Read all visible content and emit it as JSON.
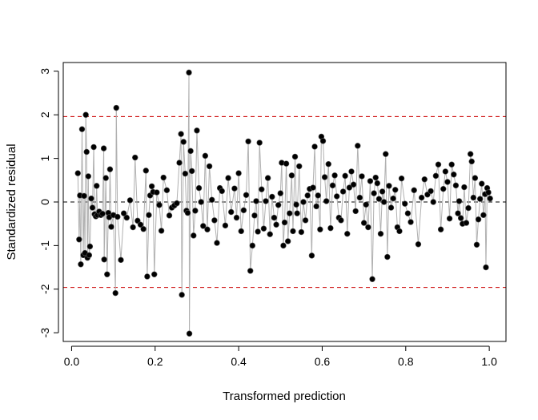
{
  "chart_data": {
    "type": "scatter",
    "title": "",
    "xlabel": "Transformed prediction",
    "ylabel": "Standardized residual",
    "xlim": [
      -0.02,
      1.04
    ],
    "ylim": [
      -3.2,
      3.2
    ],
    "xticks": [
      0.0,
      0.2,
      0.4,
      0.6,
      0.8,
      1.0
    ],
    "xtick_labels": [
      "0.0",
      "0.2",
      "0.4",
      "0.6",
      "0.8",
      "1.0"
    ],
    "yticks": [
      -3,
      -2,
      -1,
      0,
      1,
      2,
      3
    ],
    "ytick_labels": [
      "-3",
      "-2",
      "-1",
      "0",
      "1",
      "2",
      "3"
    ],
    "reference_lines": [
      {
        "y": 1.96,
        "style": "dashed",
        "color": "#cc0000"
      },
      {
        "y": 0,
        "style": "dashed",
        "color": "#000000"
      },
      {
        "y": -1.96,
        "style": "dashed",
        "color": "#cc0000"
      }
    ],
    "connecting_line_color": "#b0b0b0",
    "point_color": "#000000",
    "grid": false,
    "legend": "none",
    "points": [
      [
        0.015,
        0.66
      ],
      [
        0.018,
        -0.86
      ],
      [
        0.02,
        0.15
      ],
      [
        0.022,
        -1.43
      ],
      [
        0.025,
        1.67
      ],
      [
        0.028,
        -1.22
      ],
      [
        0.03,
        0.14
      ],
      [
        0.032,
        -1.17
      ],
      [
        0.034,
        2.0
      ],
      [
        0.036,
        1.15
      ],
      [
        0.038,
        -1.28
      ],
      [
        0.04,
        0.59
      ],
      [
        0.042,
        -1.22
      ],
      [
        0.044,
        -1.02
      ],
      [
        0.047,
        0.08
      ],
      [
        0.05,
        -0.13
      ],
      [
        0.053,
        1.26
      ],
      [
        0.055,
        -0.28
      ],
      [
        0.058,
        -0.33
      ],
      [
        0.06,
        0.37
      ],
      [
        0.062,
        -0.3
      ],
      [
        0.066,
        -0.22
      ],
      [
        0.07,
        -0.3
      ],
      [
        0.074,
        -0.27
      ],
      [
        0.077,
        1.23
      ],
      [
        0.078,
        -1.32
      ],
      [
        0.082,
        0.55
      ],
      [
        0.085,
        -1.66
      ],
      [
        0.088,
        -0.25
      ],
      [
        0.09,
        -0.35
      ],
      [
        0.092,
        0.75
      ],
      [
        0.095,
        -0.57
      ],
      [
        0.1,
        -0.3
      ],
      [
        0.105,
        -2.09
      ],
      [
        0.107,
        2.16
      ],
      [
        0.11,
        -0.34
      ],
      [
        0.118,
        -1.33
      ],
      [
        0.125,
        -0.26
      ],
      [
        0.132,
        -0.36
      ],
      [
        0.14,
        0.04
      ],
      [
        0.147,
        -0.58
      ],
      [
        0.152,
        1.02
      ],
      [
        0.158,
        -0.43
      ],
      [
        0.165,
        -0.52
      ],
      [
        0.172,
        -0.62
      ],
      [
        0.178,
        0.72
      ],
      [
        0.181,
        -1.71
      ],
      [
        0.185,
        -0.3
      ],
      [
        0.188,
        0.15
      ],
      [
        0.192,
        0.36
      ],
      [
        0.195,
        0.23
      ],
      [
        0.198,
        -1.66
      ],
      [
        0.204,
        0.22
      ],
      [
        0.21,
        -0.07
      ],
      [
        0.215,
        -0.66
      ],
      [
        0.22,
        0.56
      ],
      [
        0.228,
        0.27
      ],
      [
        0.234,
        -0.31
      ],
      [
        0.24,
        -0.13
      ],
      [
        0.246,
        -0.08
      ],
      [
        0.252,
        -0.03
      ],
      [
        0.258,
        0.9
      ],
      [
        0.262,
        1.56
      ],
      [
        0.264,
        -2.13
      ],
      [
        0.268,
        1.38
      ],
      [
        0.272,
        0.65
      ],
      [
        0.275,
        -0.2
      ],
      [
        0.278,
        -0.25
      ],
      [
        0.281,
        2.97
      ],
      [
        0.282,
        -3.02
      ],
      [
        0.285,
        1.17
      ],
      [
        0.288,
        0.71
      ],
      [
        0.292,
        -0.77
      ],
      [
        0.296,
        -0.2
      ],
      [
        0.3,
        1.64
      ],
      [
        0.305,
        0.32
      ],
      [
        0.31,
        0.0
      ],
      [
        0.315,
        -0.55
      ],
      [
        0.32,
        1.06
      ],
      [
        0.325,
        -0.63
      ],
      [
        0.33,
        0.82
      ],
      [
        0.336,
        0.05
      ],
      [
        0.342,
        -0.42
      ],
      [
        0.348,
        -0.94
      ],
      [
        0.355,
        0.32
      ],
      [
        0.36,
        0.25
      ],
      [
        0.368,
        -0.54
      ],
      [
        0.375,
        0.55
      ],
      [
        0.382,
        -0.23
      ],
      [
        0.39,
        0.31
      ],
      [
        0.395,
        -0.36
      ],
      [
        0.4,
        0.66
      ],
      [
        0.406,
        -0.67
      ],
      [
        0.412,
        -0.19
      ],
      [
        0.418,
        0.16
      ],
      [
        0.423,
        1.39
      ],
      [
        0.428,
        -1.58
      ],
      [
        0.433,
        -1.0
      ],
      [
        0.438,
        -0.31
      ],
      [
        0.442,
        0.02
      ],
      [
        0.446,
        -0.68
      ],
      [
        0.45,
        1.36
      ],
      [
        0.455,
        0.29
      ],
      [
        0.46,
        -0.61
      ],
      [
        0.465,
        0.02
      ],
      [
        0.47,
        0.55
      ],
      [
        0.475,
        -0.74
      ],
      [
        0.48,
        0.12
      ],
      [
        0.485,
        -0.36
      ],
      [
        0.49,
        -0.52
      ],
      [
        0.495,
        -0.07
      ],
      [
        0.5,
        0.2
      ],
      [
        0.503,
        0.9
      ],
      [
        0.507,
        -1.0
      ],
      [
        0.51,
        -0.47
      ],
      [
        0.514,
        0.88
      ],
      [
        0.518,
        -0.9
      ],
      [
        0.522,
        -0.26
      ],
      [
        0.527,
        0.61
      ],
      [
        0.53,
        -0.67
      ],
      [
        0.535,
        1.04
      ],
      [
        0.538,
        -0.06
      ],
      [
        0.54,
        -0.26
      ],
      [
        0.545,
        0.82
      ],
      [
        0.55,
        -0.69
      ],
      [
        0.555,
        0.0
      ],
      [
        0.56,
        -0.42
      ],
      [
        0.565,
        0.15
      ],
      [
        0.57,
        0.3
      ],
      [
        0.575,
        -1.23
      ],
      [
        0.578,
        0.33
      ],
      [
        0.582,
        1.27
      ],
      [
        0.586,
        -0.1
      ],
      [
        0.59,
        0.15
      ],
      [
        0.595,
        -0.63
      ],
      [
        0.598,
        1.5
      ],
      [
        0.602,
        1.4
      ],
      [
        0.606,
        0.57
      ],
      [
        0.61,
        0.02
      ],
      [
        0.615,
        0.87
      ],
      [
        0.62,
        -0.6
      ],
      [
        0.625,
        0.38
      ],
      [
        0.63,
        0.61
      ],
      [
        0.635,
        0.13
      ],
      [
        0.64,
        -0.36
      ],
      [
        0.645,
        -0.42
      ],
      [
        0.65,
        0.24
      ],
      [
        0.655,
        0.6
      ],
      [
        0.66,
        -0.73
      ],
      [
        0.665,
        0.33
      ],
      [
        0.67,
        0.7
      ],
      [
        0.675,
        0.4
      ],
      [
        0.68,
        -0.21
      ],
      [
        0.685,
        1.29
      ],
      [
        0.69,
        0.1
      ],
      [
        0.695,
        0.59
      ],
      [
        0.7,
        -0.48
      ],
      [
        0.705,
        -0.06
      ],
      [
        0.71,
        -0.58
      ],
      [
        0.715,
        0.48
      ],
      [
        0.72,
        -1.77
      ],
      [
        0.724,
        0.2
      ],
      [
        0.728,
        0.56
      ],
      [
        0.732,
        0.43
      ],
      [
        0.736,
        0.07
      ],
      [
        0.74,
        -0.73
      ],
      [
        0.744,
        0.24
      ],
      [
        0.748,
        0.0
      ],
      [
        0.752,
        1.1
      ],
      [
        0.756,
        -1.26
      ],
      [
        0.76,
        0.37
      ],
      [
        0.765,
        -0.13
      ],
      [
        0.77,
        0.08
      ],
      [
        0.775,
        0.28
      ],
      [
        0.78,
        -0.58
      ],
      [
        0.785,
        -0.67
      ],
      [
        0.79,
        0.54
      ],
      [
        0.798,
        -0.04
      ],
      [
        0.805,
        -0.26
      ],
      [
        0.812,
        -0.46
      ],
      [
        0.82,
        0.27
      ],
      [
        0.83,
        -0.97
      ],
      [
        0.838,
        0.1
      ],
      [
        0.845,
        0.52
      ],
      [
        0.852,
        0.17
      ],
      [
        0.86,
        0.25
      ],
      [
        0.866,
        0.0
      ],
      [
        0.872,
        0.6
      ],
      [
        0.878,
        0.86
      ],
      [
        0.884,
        -0.63
      ],
      [
        0.89,
        0.3
      ],
      [
        0.895,
        0.7
      ],
      [
        0.9,
        0.46
      ],
      [
        0.905,
        -0.38
      ],
      [
        0.91,
        0.86
      ],
      [
        0.915,
        0.63
      ],
      [
        0.92,
        0.38
      ],
      [
        0.925,
        -0.26
      ],
      [
        0.928,
        0.02
      ],
      [
        0.932,
        -0.37
      ],
      [
        0.936,
        -0.5
      ],
      [
        0.94,
        0.34
      ],
      [
        0.945,
        -0.48
      ],
      [
        0.95,
        -0.14
      ],
      [
        0.955,
        1.1
      ],
      [
        0.958,
        0.93
      ],
      [
        0.962,
        0.1
      ],
      [
        0.966,
        0.55
      ],
      [
        0.97,
        -0.98
      ],
      [
        0.974,
        -0.4
      ],
      [
        0.978,
        0.07
      ],
      [
        0.982,
        0.42
      ],
      [
        0.986,
        -0.3
      ],
      [
        0.99,
        0.18
      ],
      [
        0.992,
        -1.5
      ],
      [
        0.995,
        0.32
      ],
      [
        0.998,
        0.22
      ],
      [
        1.002,
        0.08
      ]
    ]
  }
}
